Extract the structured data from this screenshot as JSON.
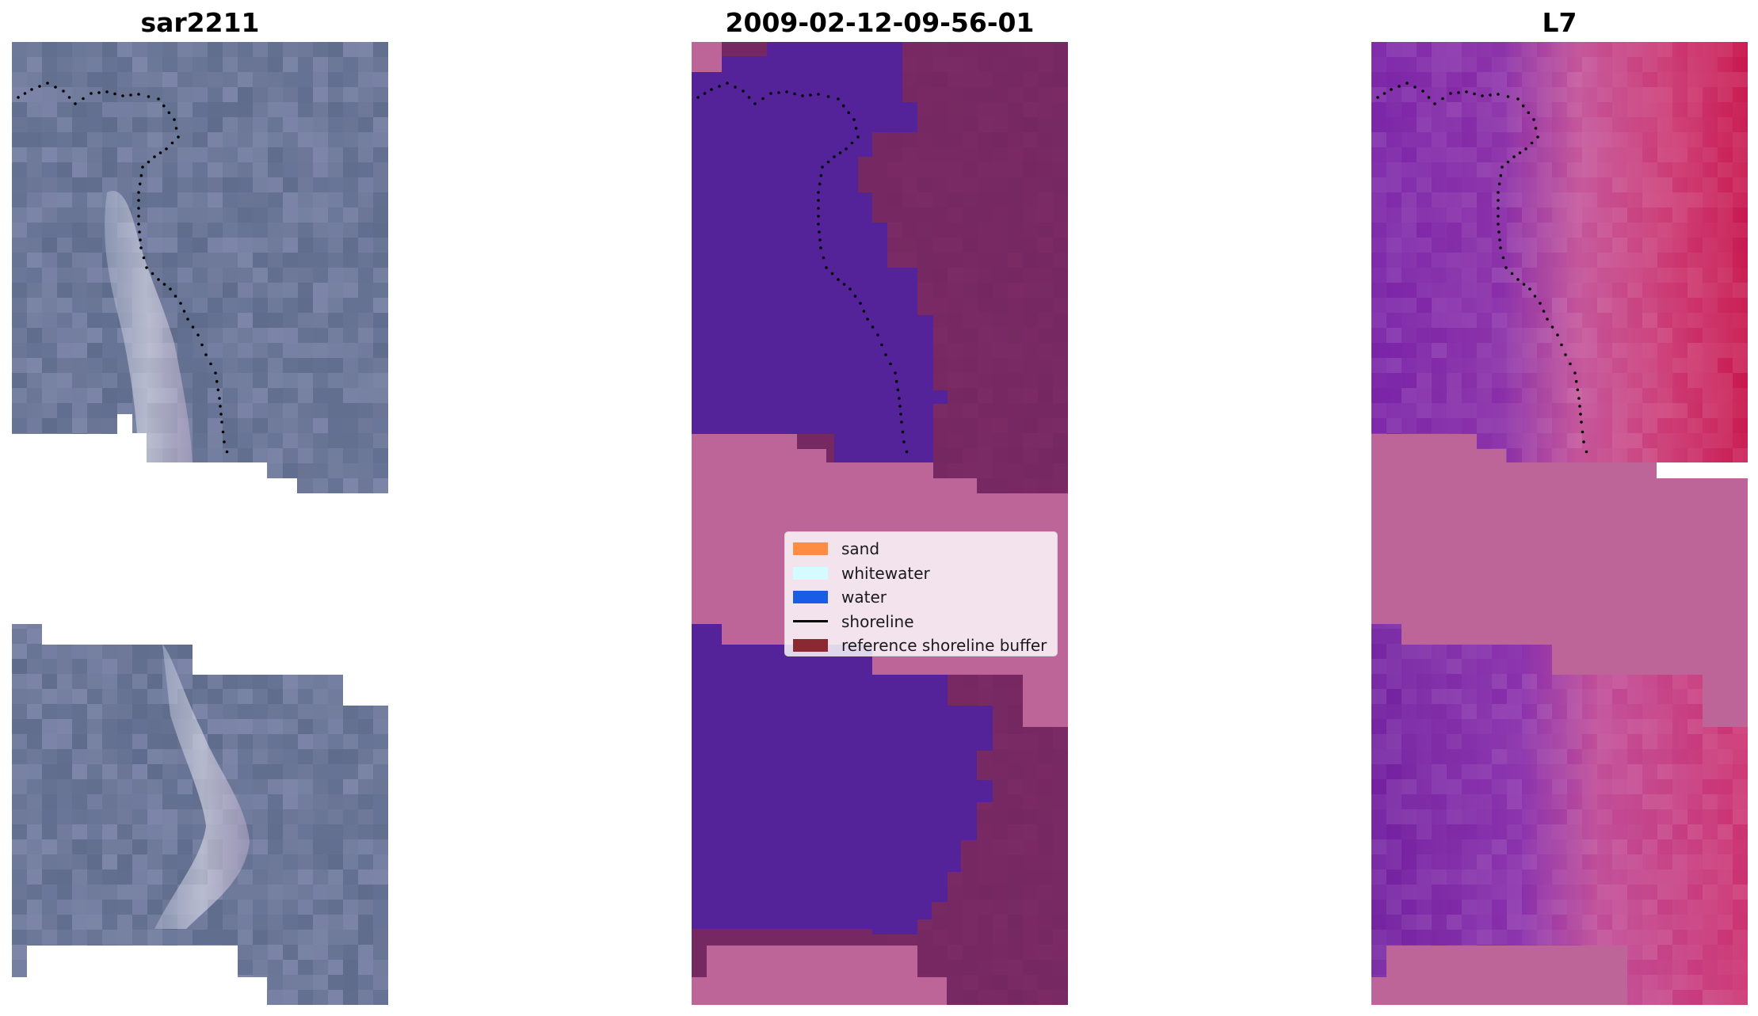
{
  "panels": {
    "left_title": "sar2211",
    "middle_title": "2009-02-12-09-56-01",
    "right_title": "L7"
  },
  "legend": {
    "items": [
      {
        "label": "sand",
        "color": "#ff8c42",
        "kind": "patch"
      },
      {
        "label": "whitewater",
        "color": "#d4fbff",
        "kind": "patch"
      },
      {
        "label": "water",
        "color": "#1a5ce6",
        "kind": "patch"
      },
      {
        "label": "shoreline",
        "color": "#000000",
        "kind": "line"
      },
      {
        "label": "reference shoreline buffer",
        "color": "#8c2832",
        "kind": "patch"
      }
    ]
  },
  "colors": {
    "rgb_water": "#6a7596",
    "rgb_surf": "#e6e2ee",
    "class_water": "#54239a",
    "class_land": "#752862",
    "class_buffer": "#bd6598",
    "mndwi_land": "#c42c66",
    "mndwi_water": "#7422a4"
  }
}
